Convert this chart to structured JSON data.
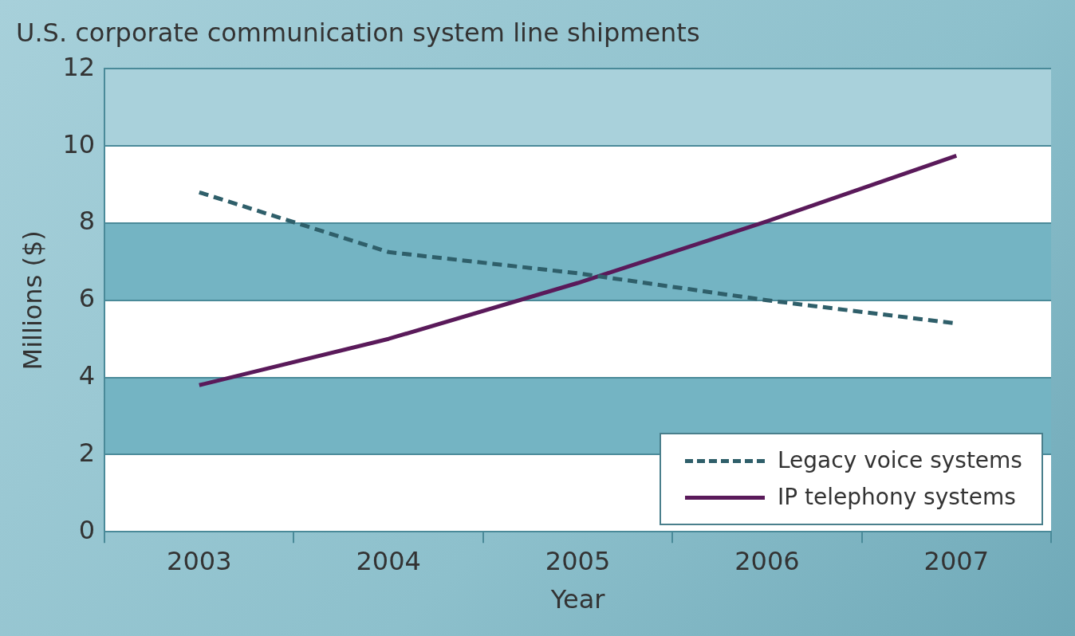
{
  "chart_data": {
    "type": "line",
    "title": "U.S. corporate communication system line shipments",
    "xlabel": "Year",
    "ylabel": "Millions ($)",
    "categories": [
      "2003",
      "2004",
      "2005",
      "2006",
      "2007"
    ],
    "series": [
      {
        "name": "Legacy voice systems",
        "color": "#2f5f6a",
        "line_style": "dashed",
        "values": [
          8.8,
          7.25,
          6.7,
          6.0,
          5.4
        ]
      },
      {
        "name": "IP telephony systems",
        "color": "#5a1a5a",
        "line_style": "solid",
        "values": [
          3.8,
          5.0,
          6.45,
          8.05,
          9.75
        ]
      }
    ],
    "bands": [
      {
        "axis": "y",
        "from": 2,
        "to": 4,
        "color": "#74b4c3"
      },
      {
        "axis": "y",
        "from": 6,
        "to": 8,
        "color": "#74b4c3"
      },
      {
        "axis": "y",
        "from": 10,
        "to": 12,
        "color": "#a9d1db"
      }
    ],
    "ylim": [
      0,
      12
    ],
    "yticks": [
      0,
      2,
      4,
      6,
      8,
      10,
      12
    ],
    "grid": "y",
    "legend": "bottom right",
    "marker": "none"
  }
}
